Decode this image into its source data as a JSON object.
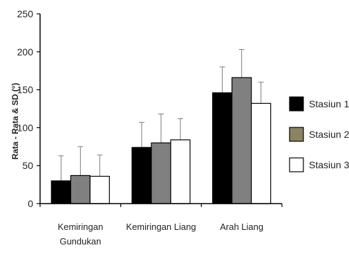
{
  "chart_data": {
    "type": "bar",
    "categories": [
      [
        "Kemiringan",
        "Gundukan"
      ],
      [
        "Kemiringan Liang"
      ],
      [
        "Arah Liang"
      ]
    ],
    "series": [
      {
        "name": "Stasiun 1",
        "color": "#000000",
        "values": [
          30,
          74,
          146
        ],
        "sd": [
          33,
          33,
          34
        ]
      },
      {
        "name": "Stasiun 2",
        "color": "#808080",
        "values": [
          37,
          80,
          166
        ],
        "sd": [
          38,
          38,
          37
        ]
      },
      {
        "name": "Stasiun 3",
        "color": "#ffffff",
        "values": [
          36,
          84,
          132
        ],
        "sd": [
          28,
          28,
          28
        ]
      }
    ],
    "ylabel": "Rata - Rata & SD (°)",
    "ylim": [
      0,
      250
    ],
    "yticks": [
      0,
      50,
      100,
      150,
      200,
      250
    ],
    "legend_position": "right",
    "legend_colors": [
      "#000000",
      "#8c8461",
      "#ffffff"
    ],
    "grid": false
  }
}
